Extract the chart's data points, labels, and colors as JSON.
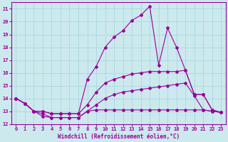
{
  "xlabel": "Windchill (Refroidissement éolien,°C)",
  "xlim": [
    -0.5,
    23.5
  ],
  "ylim": [
    12,
    21.5
  ],
  "xticks": [
    0,
    1,
    2,
    3,
    4,
    5,
    6,
    7,
    8,
    9,
    10,
    11,
    12,
    13,
    14,
    15,
    16,
    17,
    18,
    19,
    20,
    21,
    22,
    23
  ],
  "yticks": [
    12,
    13,
    14,
    15,
    16,
    17,
    18,
    19,
    20,
    21
  ],
  "bg_color": "#cce9ee",
  "grid_color": "#b0d8e0",
  "line_color": "#990099",
  "series1": [
    [
      0,
      14.0
    ],
    [
      1,
      13.6
    ],
    [
      2,
      13.0
    ],
    [
      3,
      12.6
    ],
    [
      4,
      12.5
    ],
    [
      5,
      12.5
    ],
    [
      6,
      12.5
    ],
    [
      7,
      12.5
    ],
    [
      8,
      13.0
    ],
    [
      9,
      13.1
    ],
    [
      10,
      13.1
    ],
    [
      11,
      13.1
    ],
    [
      12,
      13.1
    ],
    [
      13,
      13.1
    ],
    [
      14,
      13.1
    ],
    [
      15,
      13.1
    ],
    [
      16,
      13.1
    ],
    [
      17,
      13.1
    ],
    [
      18,
      13.1
    ],
    [
      19,
      13.1
    ],
    [
      20,
      13.1
    ],
    [
      21,
      13.1
    ],
    [
      22,
      13.0
    ],
    [
      23,
      12.9
    ]
  ],
  "series2": [
    [
      0,
      14.0
    ],
    [
      1,
      13.6
    ],
    [
      2,
      13.0
    ],
    [
      3,
      12.8
    ],
    [
      4,
      12.5
    ],
    [
      5,
      12.5
    ],
    [
      6,
      12.5
    ],
    [
      7,
      12.5
    ],
    [
      8,
      13.0
    ],
    [
      9,
      13.5
    ],
    [
      10,
      14.0
    ],
    [
      11,
      14.3
    ],
    [
      12,
      14.5
    ],
    [
      13,
      14.6
    ],
    [
      14,
      14.7
    ],
    [
      15,
      14.8
    ],
    [
      16,
      14.9
    ],
    [
      17,
      15.0
    ],
    [
      18,
      15.1
    ],
    [
      19,
      15.2
    ],
    [
      20,
      14.2
    ],
    [
      21,
      13.1
    ],
    [
      22,
      13.0
    ],
    [
      23,
      12.9
    ]
  ],
  "series3": [
    [
      0,
      14.0
    ],
    [
      1,
      13.6
    ],
    [
      2,
      13.0
    ],
    [
      3,
      13.0
    ],
    [
      4,
      12.8
    ],
    [
      5,
      12.8
    ],
    [
      6,
      12.8
    ],
    [
      7,
      12.8
    ],
    [
      8,
      13.5
    ],
    [
      9,
      14.5
    ],
    [
      10,
      15.2
    ],
    [
      11,
      15.5
    ],
    [
      12,
      15.7
    ],
    [
      13,
      15.9
    ],
    [
      14,
      16.0
    ],
    [
      15,
      16.1
    ],
    [
      16,
      16.1
    ],
    [
      17,
      16.1
    ],
    [
      18,
      16.1
    ],
    [
      19,
      16.2
    ],
    [
      20,
      14.3
    ],
    [
      21,
      14.3
    ],
    [
      22,
      13.1
    ],
    [
      23,
      12.9
    ]
  ],
  "series4": [
    [
      0,
      14.0
    ],
    [
      1,
      13.6
    ],
    [
      2,
      13.0
    ],
    [
      3,
      13.0
    ],
    [
      4,
      12.8
    ],
    [
      5,
      12.8
    ],
    [
      6,
      12.8
    ],
    [
      7,
      12.8
    ],
    [
      8,
      15.5
    ],
    [
      9,
      16.5
    ],
    [
      10,
      18.0
    ],
    [
      11,
      18.8
    ],
    [
      12,
      19.3
    ],
    [
      13,
      20.1
    ],
    [
      14,
      20.5
    ],
    [
      15,
      21.2
    ],
    [
      16,
      16.6
    ],
    [
      17,
      19.5
    ],
    [
      18,
      18.0
    ],
    [
      19,
      16.2
    ],
    [
      20,
      14.3
    ],
    [
      21,
      14.3
    ],
    [
      22,
      13.1
    ],
    [
      23,
      12.9
    ]
  ]
}
